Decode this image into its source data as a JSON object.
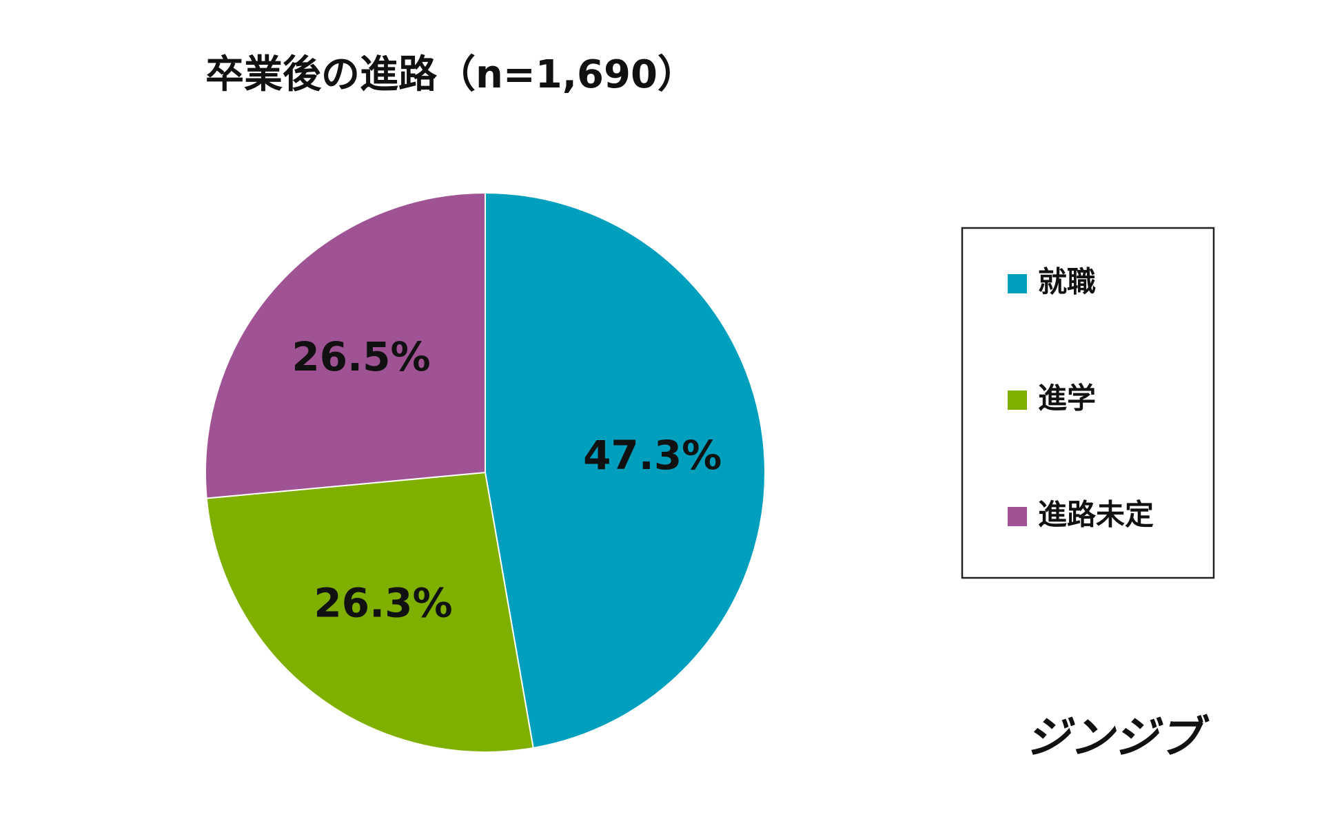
{
  "chart_data": {
    "type": "pie",
    "title": "卒業後の進路（n=1,690）",
    "categories": [
      "就職",
      "進学",
      "進路未定"
    ],
    "values": [
      47.3,
      26.3,
      26.5
    ],
    "value_labels": [
      "47.3%",
      "26.3%",
      "26.5%"
    ],
    "colors": [
      "#009fbd",
      "#7fb000",
      "#a05394"
    ],
    "legend": "right",
    "logo": "ジンジブ"
  }
}
